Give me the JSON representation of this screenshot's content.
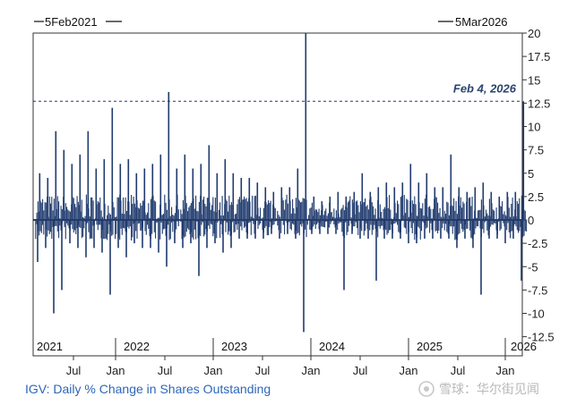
{
  "chart_data": {
    "type": "bar",
    "start_label": "5Feb2021",
    "end_label": "5Mar2026",
    "caption": "IGV: Daily % Change in Shares Outstanding",
    "annotation": "Feb 4, 2026",
    "annotation_value": 12.7,
    "ylim": [
      -13.5,
      20
    ],
    "yticks": [
      20,
      17.5,
      15,
      12.5,
      10,
      7.5,
      5,
      2.5,
      0,
      -2.5,
      -5,
      -7.5,
      -10,
      -12.5
    ],
    "ytick_labels": [
      "20",
      "17.5",
      "15",
      "12.5",
      "10",
      "7.5",
      "5",
      "2.5",
      "0",
      "-2.5",
      "-5",
      "-7.5",
      "-10",
      "-12.5"
    ],
    "year_labels": [
      "2021",
      "2022",
      "2023",
      "2024",
      "2025",
      "2026"
    ],
    "month_labels": [
      "Jul",
      "Jan",
      "Jul",
      "Jan",
      "Jul",
      "Jan",
      "Jul",
      "Jan",
      "Jul",
      "Jan"
    ],
    "bar_color": "#1f3a6e",
    "series": [
      {
        "x": [
          "2021-02",
          "2021-03",
          "2021-04",
          "2021-05",
          "2021-06",
          "2021-07",
          "2021-08",
          "2021-09",
          "2021-10",
          "2021-11",
          "2021-12",
          "2022-01",
          "2022-02",
          "2022-03",
          "2022-04",
          "2022-05",
          "2022-06",
          "2022-07",
          "2022-08",
          "2022-09",
          "2022-10",
          "2022-11",
          "2022-12",
          "2023-01",
          "2023-02",
          "2023-03",
          "2023-04",
          "2023-05",
          "2023-06",
          "2023-07",
          "2023-08",
          "2023-09",
          "2023-10",
          "2023-11",
          "2023-12",
          "2024-01",
          "2024-02",
          "2024-03",
          "2024-04",
          "2024-05",
          "2024-06",
          "2024-07",
          "2024-08",
          "2024-09",
          "2024-10",
          "2024-11",
          "2024-12",
          "2025-01",
          "2025-02",
          "2025-03",
          "2025-04",
          "2025-05",
          "2025-06",
          "2025-07",
          "2025-08",
          "2025-09",
          "2025-10",
          "2025-11",
          "2025-12",
          "2026-01",
          "2026-02"
        ],
        "max": [
          5.0,
          4.5,
          9.5,
          7.5,
          6.0,
          7.0,
          9.5,
          5.5,
          6.5,
          12.0,
          6.0,
          6.5,
          5.0,
          5.5,
          6.0,
          7.0,
          13.7,
          5.5,
          7.0,
          5.5,
          6.0,
          8.0,
          5.0,
          6.5,
          5.0,
          4.5,
          4.5,
          4.0,
          3.5,
          3.0,
          3.5,
          3.5,
          5.5,
          20.0,
          2.5,
          2.0,
          2.5,
          3.0,
          2.5,
          3.0,
          5.0,
          3.0,
          3.5,
          4.0,
          3.5,
          4.0,
          6.0,
          4.0,
          5.0,
          3.5,
          3.5,
          7.0,
          3.5,
          3.0,
          3.5,
          4.0,
          3.0,
          2.5,
          3.0,
          3.0,
          12.7
        ],
        "min": [
          -4.5,
          -3.0,
          -10.0,
          -7.5,
          -2.5,
          -3.0,
          -4.0,
          -3.0,
          -3.5,
          -8.0,
          -3.0,
          -4.0,
          -2.5,
          -3.0,
          -3.0,
          -3.5,
          -5.0,
          -2.5,
          -3.0,
          -2.5,
          -6.0,
          -3.0,
          -2.5,
          -3.5,
          -3.0,
          -2.0,
          -2.0,
          -2.0,
          -2.0,
          -1.5,
          -2.0,
          -1.5,
          -2.0,
          -12.0,
          -1.5,
          -1.5,
          -1.5,
          -1.5,
          -7.5,
          -1.5,
          -2.0,
          -2.0,
          -6.5,
          -2.0,
          -2.0,
          -2.0,
          -2.5,
          -2.5,
          -2.0,
          -2.0,
          -2.0,
          -2.0,
          -3.0,
          -2.0,
          -3.0,
          -8.0,
          -2.0,
          -2.0,
          -2.5,
          -2.0,
          -6.5
        ]
      }
    ]
  },
  "watermark": "雪球：华尔街见闻"
}
